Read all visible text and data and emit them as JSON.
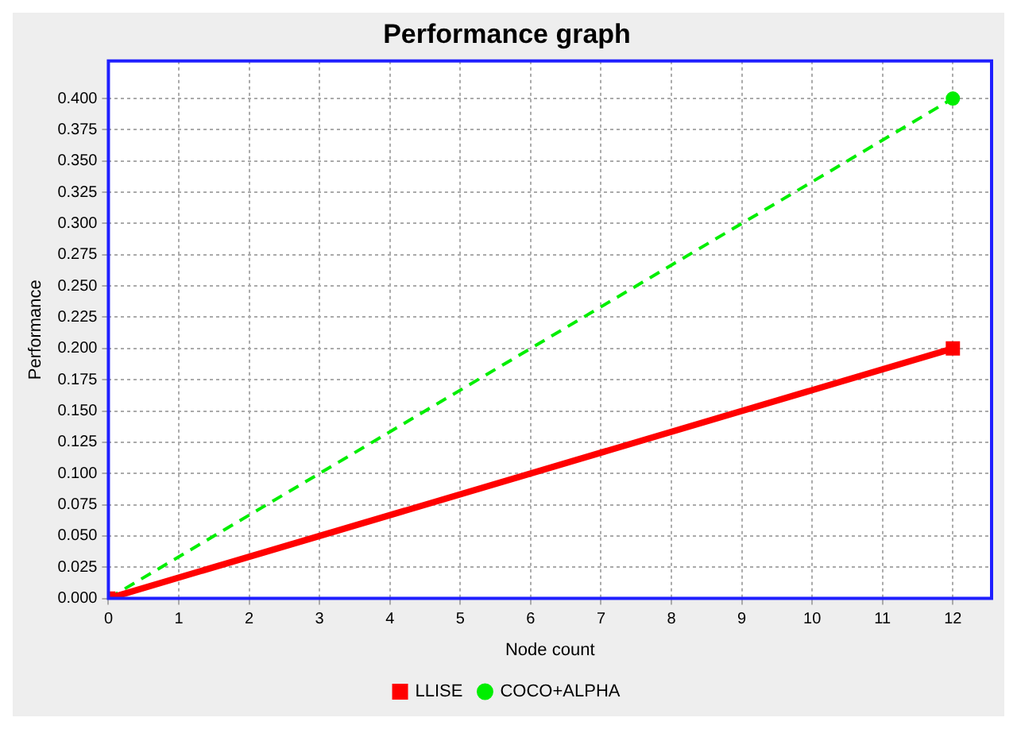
{
  "chart_data": {
    "type": "line",
    "title": "Performance graph",
    "xlabel": "Node count",
    "ylabel": "Performance",
    "x": [
      0,
      12
    ],
    "series": [
      {
        "name": "LLISE",
        "color": "#ff0000",
        "values": [
          0,
          0.2
        ],
        "marker": "square",
        "line_style": "solid"
      },
      {
        "name": "COCO+ALPHA",
        "color": "#00ee00",
        "values": [
          0,
          0.4
        ],
        "marker": "circle",
        "line_style": "dashed"
      }
    ],
    "xlim": [
      0,
      12.55
    ],
    "xticks": [
      0,
      1,
      2,
      3,
      4,
      5,
      6,
      7,
      8,
      9,
      10,
      11,
      12
    ],
    "ylim": [
      0,
      0.43
    ],
    "yticks": [
      {
        "value": 0,
        "label": "0.000"
      },
      {
        "value": 0.025,
        "label": "0.025"
      },
      {
        "value": 0.05,
        "label": "0.050"
      },
      {
        "value": 0.075,
        "label": "0.075"
      },
      {
        "value": 0.1,
        "label": "0.100"
      },
      {
        "value": 0.125,
        "label": "0.125"
      },
      {
        "value": 0.15,
        "label": "0.150"
      },
      {
        "value": 0.175,
        "label": "0.175"
      },
      {
        "value": 0.2,
        "label": "0.200"
      },
      {
        "value": 0.225,
        "label": "0.225"
      },
      {
        "value": 0.25,
        "label": "0.250"
      },
      {
        "value": 0.275,
        "label": "0.275"
      },
      {
        "value": 0.3,
        "label": "0.300"
      },
      {
        "value": 0.325,
        "label": "0.325"
      },
      {
        "value": 0.35,
        "label": "0.350"
      },
      {
        "value": 0.375,
        "label": "0.375"
      },
      {
        "value": 0.4,
        "label": "0.400"
      }
    ],
    "grid": true,
    "legend": "bottom"
  }
}
